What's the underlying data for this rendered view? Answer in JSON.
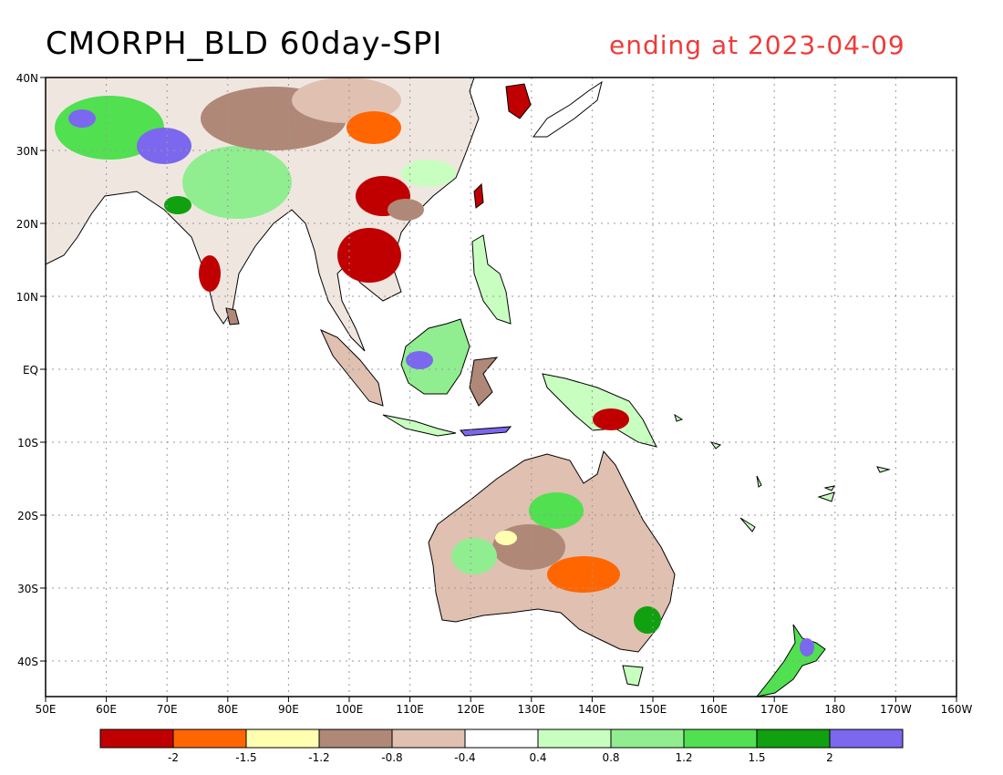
{
  "title": "CMORPH_BLD 60day-SPI",
  "subtitle": "ending at 2023-04-09",
  "colors": {
    "subtitle": "#ee3b3b",
    "ocean": "#ffffff",
    "grid": "#999999",
    "coast": "#000000"
  },
  "axes": {
    "lon_labels": [
      "50E",
      "60E",
      "70E",
      "80E",
      "90E",
      "100E",
      "110E",
      "120E",
      "130E",
      "140E",
      "150E",
      "160E",
      "170E",
      "180",
      "170W",
      "160W"
    ],
    "lat_labels": [
      "40N",
      "30N",
      "20N",
      "10N",
      "EQ",
      "10S",
      "20S",
      "30S",
      "40S"
    ],
    "lon_range": [
      50,
      200
    ],
    "lat_range": [
      -45,
      40
    ]
  },
  "legend": {
    "colors": [
      "#c00000",
      "#ff6600",
      "#ffffb0",
      "#b08878",
      "#e0c0b0",
      "#ffffff",
      "#c8ffc0",
      "#90ee90",
      "#50e050",
      "#10a010",
      "#7b68ee"
    ],
    "labels": [
      "-2",
      "-1.5",
      "-1.2",
      "-0.8",
      "-0.4",
      "0.4",
      "0.8",
      "1.2",
      "1.5",
      "2"
    ]
  }
}
